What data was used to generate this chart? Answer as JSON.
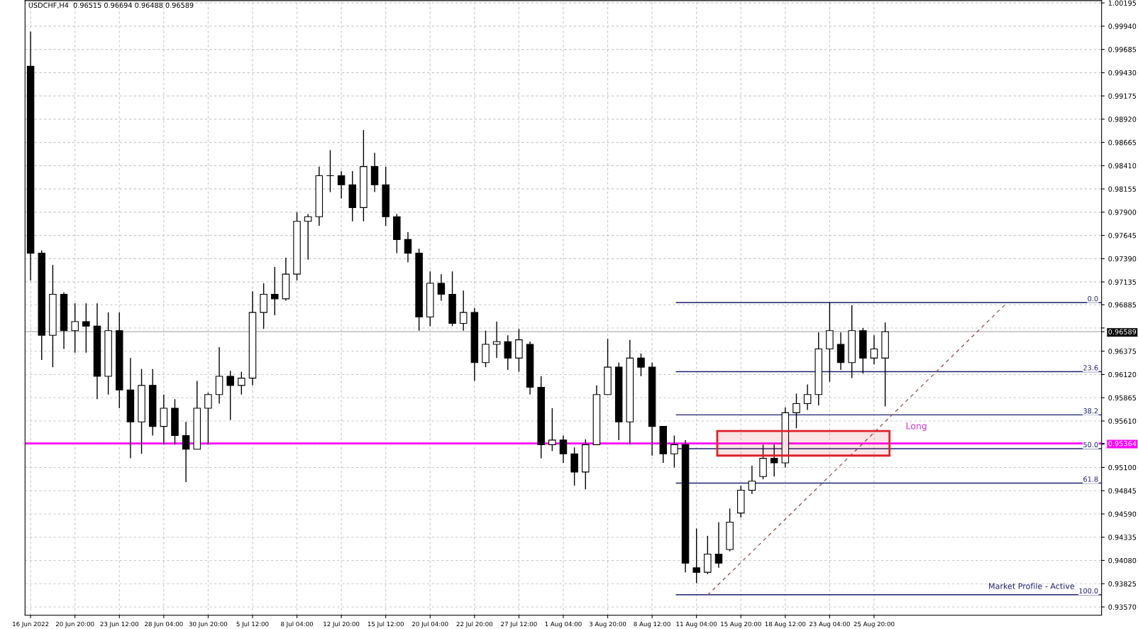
{
  "chart_data": {
    "type": "candlestick",
    "title": "USDCHF,H4  0.96515 0.96694 0.96488 0.96589",
    "categories": [
      "16 Jun 2022",
      null,
      null,
      null,
      "20 Jun 20:00",
      null,
      null,
      null,
      "23 Jun 12:00",
      null,
      null,
      null,
      "28 Jun 04:00",
      null,
      null,
      null,
      "30 Jun 20:00",
      null,
      null,
      null,
      "5 Jul 12:00",
      null,
      null,
      null,
      "8 Jul 04:00",
      null,
      null,
      null,
      "12 Jul 20:00",
      null,
      null,
      null,
      "15 Jul 12:00",
      null,
      null,
      null,
      "20 Jul 04:00",
      null,
      null,
      null,
      "22 Jul 20:00",
      null,
      null,
      null,
      "27 Jul 12:00",
      null,
      null,
      null,
      "1 Aug 04:00",
      null,
      null,
      null,
      "3 Aug 20:00",
      null,
      null,
      null,
      "8 Aug 12:00",
      null,
      null,
      null,
      "11 Aug 04:00",
      null,
      null,
      null,
      "15 Aug 20:00",
      null,
      null,
      null,
      "18 Aug 12:00",
      null,
      null,
      null,
      "23 Aug 04:00",
      null,
      null,
      null,
      "25 Aug 20:00",
      null,
      null,
      null,
      null,
      null,
      null,
      null,
      null,
      null,
      null,
      null,
      null,
      null,
      null,
      null,
      null,
      null,
      null,
      null,
      null
    ],
    "ohlc": [
      [
        0.995,
        0.9988,
        0.9715,
        0.9745
      ],
      [
        0.9745,
        0.9748,
        0.9628,
        0.9655
      ],
      [
        0.9655,
        0.9732,
        0.962,
        0.97
      ],
      [
        0.97,
        0.9702,
        0.964,
        0.966
      ],
      [
        0.966,
        0.969,
        0.9636,
        0.967
      ],
      [
        0.967,
        0.969,
        0.9636,
        0.9665
      ],
      [
        0.9665,
        0.969,
        0.9585,
        0.961
      ],
      [
        0.961,
        0.968,
        0.959,
        0.966
      ],
      [
        0.966,
        0.968,
        0.9575,
        0.9595
      ],
      [
        0.9595,
        0.963,
        0.952,
        0.956
      ],
      [
        0.956,
        0.9618,
        0.9525,
        0.96
      ],
      [
        0.96,
        0.9618,
        0.9545,
        0.9555
      ],
      [
        0.9555,
        0.959,
        0.9535,
        0.9575
      ],
      [
        0.9575,
        0.9585,
        0.9535,
        0.9545
      ],
      [
        0.9545,
        0.956,
        0.9494,
        0.953
      ],
      [
        0.953,
        0.9605,
        0.953,
        0.9575
      ],
      [
        0.9575,
        0.9592,
        0.9535,
        0.959
      ],
      [
        0.959,
        0.9642,
        0.958,
        0.961
      ],
      [
        0.961,
        0.9616,
        0.9562,
        0.96
      ],
      [
        0.96,
        0.9615,
        0.959,
        0.9608
      ],
      [
        0.9608,
        0.9703,
        0.96,
        0.968
      ],
      [
        0.968,
        0.9712,
        0.9662,
        0.97
      ],
      [
        0.97,
        0.973,
        0.9677,
        0.9695
      ],
      [
        0.9695,
        0.974,
        0.9693,
        0.9722
      ],
      [
        0.9722,
        0.979,
        0.9715,
        0.978
      ],
      [
        0.978,
        0.9788,
        0.9738,
        0.9785
      ],
      [
        0.9785,
        0.984,
        0.9775,
        0.983
      ],
      [
        0.983,
        0.9858,
        0.9812,
        0.983
      ],
      [
        0.983,
        0.9835,
        0.9805,
        0.982
      ],
      [
        0.982,
        0.9835,
        0.978,
        0.9795
      ],
      [
        0.9795,
        0.988,
        0.978,
        0.984
      ],
      [
        0.984,
        0.9855,
        0.9812,
        0.982
      ],
      [
        0.982,
        0.984,
        0.9775,
        0.9785
      ],
      [
        0.9785,
        0.9788,
        0.9745,
        0.976
      ],
      [
        0.976,
        0.9768,
        0.9735,
        0.9745
      ],
      [
        0.9745,
        0.975,
        0.966,
        0.9675
      ],
      [
        0.9675,
        0.9725,
        0.9665,
        0.9712
      ],
      [
        0.9712,
        0.9722,
        0.9693,
        0.97
      ],
      [
        0.97,
        0.9725,
        0.9665,
        0.9668
      ],
      [
        0.9668,
        0.9704,
        0.966,
        0.968
      ],
      [
        0.968,
        0.9685,
        0.9605,
        0.9625
      ],
      [
        0.9625,
        0.966,
        0.962,
        0.9645
      ],
      [
        0.9645,
        0.967,
        0.963,
        0.9648
      ],
      [
        0.9648,
        0.9655,
        0.9617,
        0.963
      ],
      [
        0.963,
        0.9662,
        0.9615,
        0.965
      ],
      [
        0.9645,
        0.9648,
        0.959,
        0.9598
      ],
      [
        0.9598,
        0.961,
        0.952,
        0.9535
      ],
      [
        0.9535,
        0.9575,
        0.9528,
        0.954
      ],
      [
        0.954,
        0.9545,
        0.9515,
        0.9525
      ],
      [
        0.9525,
        0.9532,
        0.949,
        0.9505
      ],
      [
        0.9505,
        0.9541,
        0.9486,
        0.9535
      ],
      [
        0.9535,
        0.96,
        0.9535,
        0.959
      ],
      [
        0.959,
        0.9651,
        0.959,
        0.962
      ],
      [
        0.962,
        0.9625,
        0.954,
        0.956
      ],
      [
        0.956,
        0.965,
        0.9535,
        0.963
      ],
      [
        0.963,
        0.9635,
        0.961,
        0.962
      ],
      [
        0.962,
        0.9625,
        0.9523,
        0.9555
      ],
      [
        0.9555,
        0.9555,
        0.9515,
        0.9525
      ],
      [
        0.9525,
        0.9545,
        0.951,
        0.9535
      ],
      [
        0.9535,
        0.954,
        0.9395,
        0.9405
      ],
      [
        0.94,
        0.9443,
        0.9383,
        0.9395
      ],
      [
        0.9395,
        0.9435,
        0.9393,
        0.9415
      ],
      [
        0.9415,
        0.945,
        0.94,
        0.9405
      ],
      [
        0.942,
        0.9465,
        0.9418,
        0.945
      ],
      [
        0.946,
        0.949,
        0.9455,
        0.9485
      ],
      [
        0.9485,
        0.9512,
        0.9481,
        0.9495
      ],
      [
        0.95,
        0.9535,
        0.9497,
        0.952
      ],
      [
        0.952,
        0.9535,
        0.95,
        0.9515
      ],
      [
        0.9515,
        0.9576,
        0.951,
        0.957
      ],
      [
        0.957,
        0.9591,
        0.9553,
        0.958
      ],
      [
        0.958,
        0.9601,
        0.9573,
        0.959
      ],
      [
        0.959,
        0.9658,
        0.9578,
        0.964
      ],
      [
        0.964,
        0.9691,
        0.9604,
        0.966
      ],
      [
        0.9645,
        0.9658,
        0.9617,
        0.9625
      ],
      [
        0.9625,
        0.9688,
        0.9608,
        0.966
      ],
      [
        0.966,
        0.9663,
        0.9613,
        0.963
      ],
      [
        0.963,
        0.9655,
        0.9623,
        0.964
      ],
      [
        0.963,
        0.9669,
        0.9577,
        0.96589
      ],
      null,
      null,
      null,
      null,
      null,
      null,
      null,
      null,
      null,
      null,
      null,
      null,
      null,
      null,
      null,
      null,
      null,
      null,
      null
    ],
    "series": [
      {
        "type": "line",
        "color": "#8b4a4a",
        "line_style": "dashed",
        "values": [
          null,
          null,
          null,
          null,
          null,
          null,
          null,
          null,
          null,
          null,
          null,
          null,
          null,
          null,
          null,
          null,
          null,
          null,
          null,
          null,
          null,
          null,
          null,
          null,
          null,
          null,
          null,
          null,
          null,
          null,
          null,
          null,
          null,
          null,
          null,
          null,
          null,
          null,
          null,
          null,
          null,
          null,
          null,
          null,
          null,
          null,
          null,
          null,
          null,
          null,
          null,
          null,
          null,
          null,
          null,
          null,
          null,
          null,
          null,
          null,
          null,
          0.937,
          null,
          null,
          null,
          null,
          null,
          null,
          null,
          null,
          null,
          null,
          null,
          null,
          null,
          null,
          null,
          null,
          null,
          null,
          null,
          null,
          null,
          null,
          null,
          null,
          null,
          null,
          0.9691,
          null,
          null,
          null,
          null,
          null,
          null,
          null,
          null
        ]
      }
    ],
    "ylim": [
      0.9348,
      1.0022
    ],
    "yticks": [
      {
        "value": 0.9357,
        "label": "0.93570"
      },
      0.93825,
      {
        "value": 0.9408,
        "label": "0.94080"
      },
      0.94335,
      {
        "value": 0.9459,
        "label": "0.94590"
      },
      0.94845,
      {
        "value": 0.951,
        "label": "0.95100"
      },
      {
        "value": 0.95355,
        "label": null
      },
      {
        "value": 0.95364,
        "label": "0.95364"
      },
      {
        "value": 0.9561,
        "label": "0.95610"
      },
      0.95865,
      {
        "value": 0.9612,
        "label": "0.96120"
      },
      0.96375,
      {
        "value": 0.96589,
        "label": "0.96589"
      },
      {
        "value": 0.9663,
        "label": null
      },
      0.96885,
      0.97135,
      {
        "value": 0.9739,
        "label": "0.97390"
      },
      0.97645,
      {
        "value": 0.979,
        "label": "0.97900"
      },
      0.98155,
      {
        "value": 0.9841,
        "label": "0.98410"
      },
      0.98665,
      {
        "value": 0.9892,
        "label": "0.98920"
      },
      0.99175,
      {
        "value": 0.9943,
        "label": "0.99430"
      },
      0.99685,
      {
        "value": 0.9994,
        "label": "0.99940"
      },
      1.00195
    ],
    "ref_lines": [
      {
        "axis": "y",
        "value": 0.95364,
        "color": "#ff00ff"
      },
      {
        "axis": "y",
        "value": 0.96589,
        "color": "#c0c0c0"
      },
      {
        "axis": "y",
        "value": 0.96908,
        "color": "#1c2270"
      },
      {
        "axis": "y",
        "value": 0.96151,
        "color": "#1c2270"
      },
      {
        "axis": "y",
        "value": 0.95677,
        "color": "#1c2270"
      },
      {
        "axis": "y",
        "value": 0.95306,
        "color": "#1c2270"
      },
      {
        "axis": "y",
        "value": 0.94928,
        "color": "#1c2270"
      },
      {
        "axis": "y",
        "value": 0.93704,
        "color": "#1c2270"
      }
    ],
    "bands": [
      {
        "axis": "y",
        "from": 0.9523,
        "to": 0.955,
        "label": "Long",
        "color": "#e0202a"
      }
    ],
    "annotations": [
      "Market Profile - Active",
      {
        "text": "0.0",
        "y": 0.96908
      },
      {
        "text": "23.6",
        "y": 0.96151
      },
      {
        "text": "38.2",
        "y": 0.95677
      },
      {
        "text": "50.0",
        "y": 0.95306
      },
      {
        "text": "61.8",
        "y": 0.94928
      },
      {
        "text": "100.0",
        "y": 0.93704
      }
    ],
    "grid": true,
    "tick_labels": "xy"
  }
}
